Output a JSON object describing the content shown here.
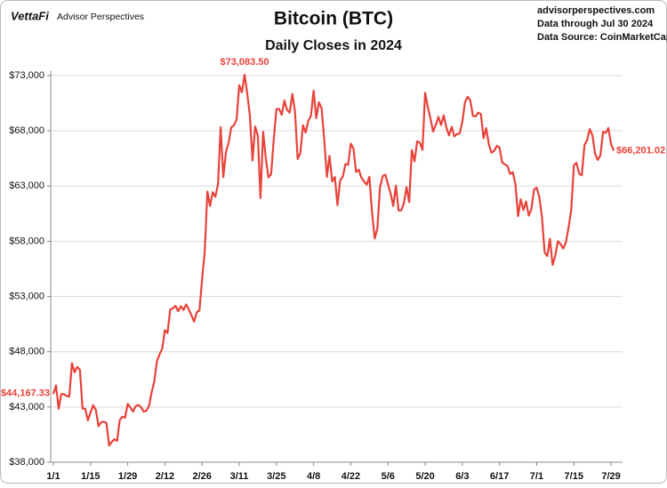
{
  "chart_data": {
    "type": "line",
    "title": "Bitcoin (BTC)",
    "subtitle": "Daily Closes in 2024",
    "brand": "VettaFi",
    "brand_subtitle": "Advisor Perspectives",
    "source_lines": [
      "advisorperspectives.com",
      "Data through Jul 30 2024",
      "Data Source: CoinMarketCap"
    ],
    "color": "#e8423a",
    "grid": true,
    "ylim": [
      38000,
      73000
    ],
    "yticks": [
      {
        "value": 38000,
        "label": "$38,000"
      },
      {
        "value": 43000,
        "label": "$43,000"
      },
      {
        "value": 48000,
        "label": "$48,000"
      },
      {
        "value": 53000,
        "label": "$53,000"
      },
      {
        "value": 58000,
        "label": "$58,000"
      },
      {
        "value": 63000,
        "label": "$63,000"
      },
      {
        "value": 68000,
        "label": "$68,000"
      },
      {
        "value": 73000,
        "label": "$73,000"
      }
    ],
    "categories": [
      "1/1",
      null,
      null,
      null,
      null,
      null,
      null,
      null,
      null,
      null,
      null,
      null,
      null,
      null,
      "1/15",
      null,
      null,
      null,
      null,
      null,
      null,
      null,
      null,
      null,
      null,
      null,
      null,
      null,
      "1/29",
      null,
      null,
      null,
      null,
      null,
      null,
      null,
      null,
      null,
      null,
      null,
      null,
      null,
      "2/12",
      null,
      null,
      null,
      null,
      null,
      null,
      null,
      null,
      null,
      null,
      null,
      null,
      null,
      "2/26",
      null,
      null,
      null,
      null,
      null,
      null,
      null,
      null,
      null,
      null,
      null,
      null,
      null,
      "3/11",
      null,
      null,
      null,
      null,
      null,
      null,
      null,
      null,
      null,
      null,
      null,
      null,
      null,
      "3/25",
      null,
      null,
      null,
      null,
      null,
      null,
      null,
      null,
      null,
      null,
      null,
      null,
      null,
      "4/8",
      null,
      null,
      null,
      null,
      null,
      null,
      null,
      null,
      null,
      null,
      null,
      null,
      null,
      "4/22",
      null,
      null,
      null,
      null,
      null,
      null,
      null,
      null,
      null,
      null,
      null,
      null,
      null,
      "5/6",
      null,
      null,
      null,
      null,
      null,
      null,
      null,
      null,
      null,
      null,
      null,
      null,
      null,
      "5/20",
      null,
      null,
      null,
      null,
      null,
      null,
      null,
      null,
      null,
      null,
      null,
      null,
      null,
      "6/3",
      null,
      null,
      null,
      null,
      null,
      null,
      null,
      null,
      null,
      null,
      null,
      null,
      null,
      "6/17",
      null,
      null,
      null,
      null,
      null,
      null,
      null,
      null,
      null,
      null,
      null,
      null,
      null,
      "7/1",
      null,
      null,
      null,
      null,
      null,
      null,
      null,
      null,
      null,
      null,
      null,
      null,
      null,
      "7/15",
      null,
      null,
      null,
      null,
      null,
      null,
      null,
      null,
      null,
      null,
      null,
      null,
      null,
      "7/29",
      null
    ],
    "values": [
      44167.33,
      44957,
      42848,
      44179,
      44162,
      43989,
      43943,
      46970,
      46139,
      46627,
      46368,
      42853,
      42842,
      41796,
      42511,
      43154,
      42742,
      41262,
      41618,
      41665,
      41545,
      39507,
      39845,
      40077,
      39933,
      41816,
      42120,
      42035,
      43288,
      42952,
      42582,
      43075,
      43185,
      42992,
      42583,
      42659,
      43084,
      44318,
      45301,
      47147,
      47771,
      48294,
      49958,
      49699,
      51812,
      51938,
      52160,
      51663,
      52122,
      51779,
      52284,
      51839,
      51304,
      50731,
      51571,
      51733,
      54522,
      57085,
      62504,
      61198,
      62440,
      62029,
      63167,
      68330,
      63801,
      66106,
      66925,
      68300,
      68498,
      69019,
      72123,
      71481,
      73083.5,
      71396,
      69403,
      65315,
      68391,
      67548,
      61912,
      67913,
      65491,
      63779,
      64062,
      67234,
      69958,
      69987,
      69455,
      70744,
      69893,
      69645,
      71334,
      69702,
      65446,
      65981,
      68508,
      67837,
      68896,
      69362,
      71631,
      69139,
      70587,
      70060,
      67195,
      63821,
      65738,
      63426,
      63811,
      61276,
      63513,
      63843,
      64994,
      64927,
      66837,
      66407,
      64276,
      64481,
      63755,
      63419,
      63113,
      63841,
      60636,
      58254,
      59123,
      62889,
      63891,
      64031,
      63161,
      62334,
      61187,
      63049,
      60793,
      60793,
      61448,
      62901,
      61553,
      66267,
      65231,
      67051,
      66940,
      66278,
      71448,
      70136,
      69122,
      67929,
      68526,
      69265,
      68518,
      69394,
      68296,
      67578,
      68364,
      67491,
      67706,
      67751,
      68804,
      70567,
      71082,
      70757,
      69342,
      69305,
      69648,
      69512,
      67332,
      68241,
      66756,
      66012,
      66191,
      66639,
      66490,
      65140,
      64960,
      64828,
      64096,
      64252,
      63180,
      60277,
      61804,
      60811,
      61604,
      60320,
      60887,
      62678,
      62851,
      62029,
      60173,
      56977,
      56663,
      58231,
      55857,
      56705,
      58009,
      57742,
      57344,
      57899,
      59231,
      60787,
      64870,
      65097,
      64118,
      63974,
      66710,
      67164,
      68154,
      67585,
      65927,
      65372,
      65777,
      67912,
      67813,
      68255,
      66819,
      66201.02
    ],
    "value_labels": [
      "$44,167.33",
      null,
      null,
      null,
      null,
      null,
      null,
      null,
      null,
      null,
      null,
      null,
      null,
      null,
      null,
      null,
      null,
      null,
      null,
      null,
      null,
      null,
      null,
      null,
      null,
      null,
      null,
      null,
      null,
      null,
      null,
      null,
      null,
      null,
      null,
      null,
      null,
      null,
      null,
      null,
      null,
      null,
      null,
      null,
      null,
      null,
      null,
      null,
      null,
      null,
      null,
      null,
      null,
      null,
      null,
      null,
      null,
      null,
      null,
      null,
      null,
      null,
      null,
      null,
      null,
      null,
      null,
      null,
      null,
      null,
      null,
      null,
      "$73,083.50",
      null,
      null,
      null,
      null,
      null,
      null,
      null,
      null,
      null,
      null,
      null,
      null,
      null,
      null,
      null,
      null,
      null,
      null,
      null,
      null,
      null,
      null,
      null,
      null,
      null,
      null,
      null,
      null,
      null,
      null,
      null,
      null,
      null,
      null,
      null,
      null,
      null,
      null,
      null,
      null,
      null,
      null,
      null,
      null,
      null,
      null,
      null,
      null,
      null,
      null,
      null,
      null,
      null,
      null,
      null,
      null,
      null,
      null,
      null,
      null,
      null,
      null,
      null,
      null,
      null,
      null,
      null,
      null,
      null,
      null,
      null,
      null,
      null,
      null,
      null,
      null,
      null,
      null,
      null,
      null,
      null,
      null,
      null,
      null,
      null,
      null,
      null,
      null,
      null,
      null,
      null,
      null,
      null,
      null,
      null,
      null,
      null,
      null,
      null,
      null,
      null,
      null,
      null,
      null,
      null,
      null,
      null,
      null,
      null,
      null,
      null,
      null,
      null,
      null,
      null,
      null,
      null,
      null,
      null,
      null,
      null,
      null,
      null,
      null,
      null,
      null,
      null,
      null,
      null,
      null,
      null,
      null,
      null,
      null,
      null,
      null,
      null,
      null,
      "$66,201.02"
    ]
  }
}
